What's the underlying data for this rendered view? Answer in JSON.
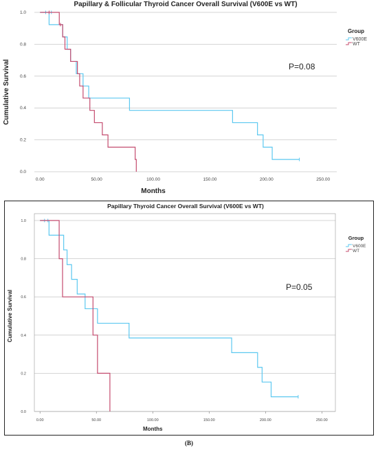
{
  "chart_data": [
    {
      "type": "line",
      "title": "Papillary & Follicular Thyroid Cancer Overall Survival (V600E vs WT)",
      "xlabel": "Months",
      "ylabel": "Cumulative Survival",
      "xlim": [
        -5,
        262
      ],
      "ylim": [
        0,
        1.0
      ],
      "x_ticks": [
        "0.00",
        "50.00",
        "100.00",
        "150.00",
        "200.00",
        "250.00"
      ],
      "y_ticks": [
        "0.0",
        "0.2",
        "0.4",
        "0.6",
        "0.8",
        "1.0"
      ],
      "grid": "horizontal",
      "legend_title": "Group",
      "legend_position": "right",
      "annotation": "P=0.08",
      "series": [
        {
          "name": "V600E",
          "color": "#5bc8f0",
          "x": [
            0,
            8,
            18,
            20,
            24,
            27,
            32,
            38,
            43,
            51,
            79,
            170,
            192,
            197,
            205,
            229
          ],
          "y": [
            1.0,
            0.923,
            0.923,
            0.846,
            0.769,
            0.692,
            0.615,
            0.538,
            0.462,
            0.462,
            0.385,
            0.308,
            0.231,
            0.154,
            0.077,
            0.077
          ],
          "censored": [
            [
              5,
              1.0
            ],
            [
              10,
              1.0
            ],
            [
              229,
              0.077
            ]
          ]
        },
        {
          "name": "WT",
          "color": "#c44b6e",
          "x": [
            0,
            17,
            20,
            22,
            27,
            33,
            35,
            38,
            44,
            48,
            55,
            60,
            62,
            84,
            85
          ],
          "y": [
            1.0,
            0.923,
            0.846,
            0.769,
            0.692,
            0.615,
            0.538,
            0.462,
            0.385,
            0.308,
            0.231,
            0.154,
            0.154,
            0.077,
            0.0
          ],
          "censored": [
            [
              8,
              1.0
            ],
            [
              18,
              0.923
            ]
          ]
        }
      ]
    },
    {
      "type": "line",
      "title": "Papillary Thyroid Cancer Overall Survival (V600E vs WT)",
      "xlabel": "Months",
      "ylabel": "Cumulative Survival",
      "xlim": [
        -5,
        262
      ],
      "ylim": [
        0,
        1.0
      ],
      "x_ticks": [
        "0.00",
        "50.00",
        "100.00",
        "150.00",
        "200.00",
        "250.00"
      ],
      "y_ticks": [
        "0.0",
        "0.2",
        "0.4",
        "0.6",
        "0.8",
        "1.0"
      ],
      "grid": "horizontal",
      "legend_title": "Group",
      "legend_position": "right",
      "annotation": "P=0.05",
      "series": [
        {
          "name": "V600E",
          "color": "#5bc8f0",
          "x": [
            0,
            8,
            18,
            21,
            24,
            28,
            33,
            40,
            45,
            51,
            79,
            170,
            193,
            197,
            205,
            229
          ],
          "y": [
            1.0,
            0.923,
            0.923,
            0.846,
            0.769,
            0.692,
            0.615,
            0.538,
            0.538,
            0.462,
            0.385,
            0.308,
            0.231,
            0.154,
            0.077,
            0.077
          ],
          "censored": [
            [
              4,
              1.0
            ],
            [
              7,
              1.0
            ],
            [
              229,
              0.077
            ]
          ]
        },
        {
          "name": "WT",
          "color": "#c44b6e",
          "x": [
            0,
            17,
            20,
            43,
            47,
            51,
            62
          ],
          "y": [
            1.0,
            0.8,
            0.6,
            0.6,
            0.4,
            0.2,
            0.0
          ],
          "censored": []
        }
      ]
    }
  ],
  "caption": "(B)"
}
